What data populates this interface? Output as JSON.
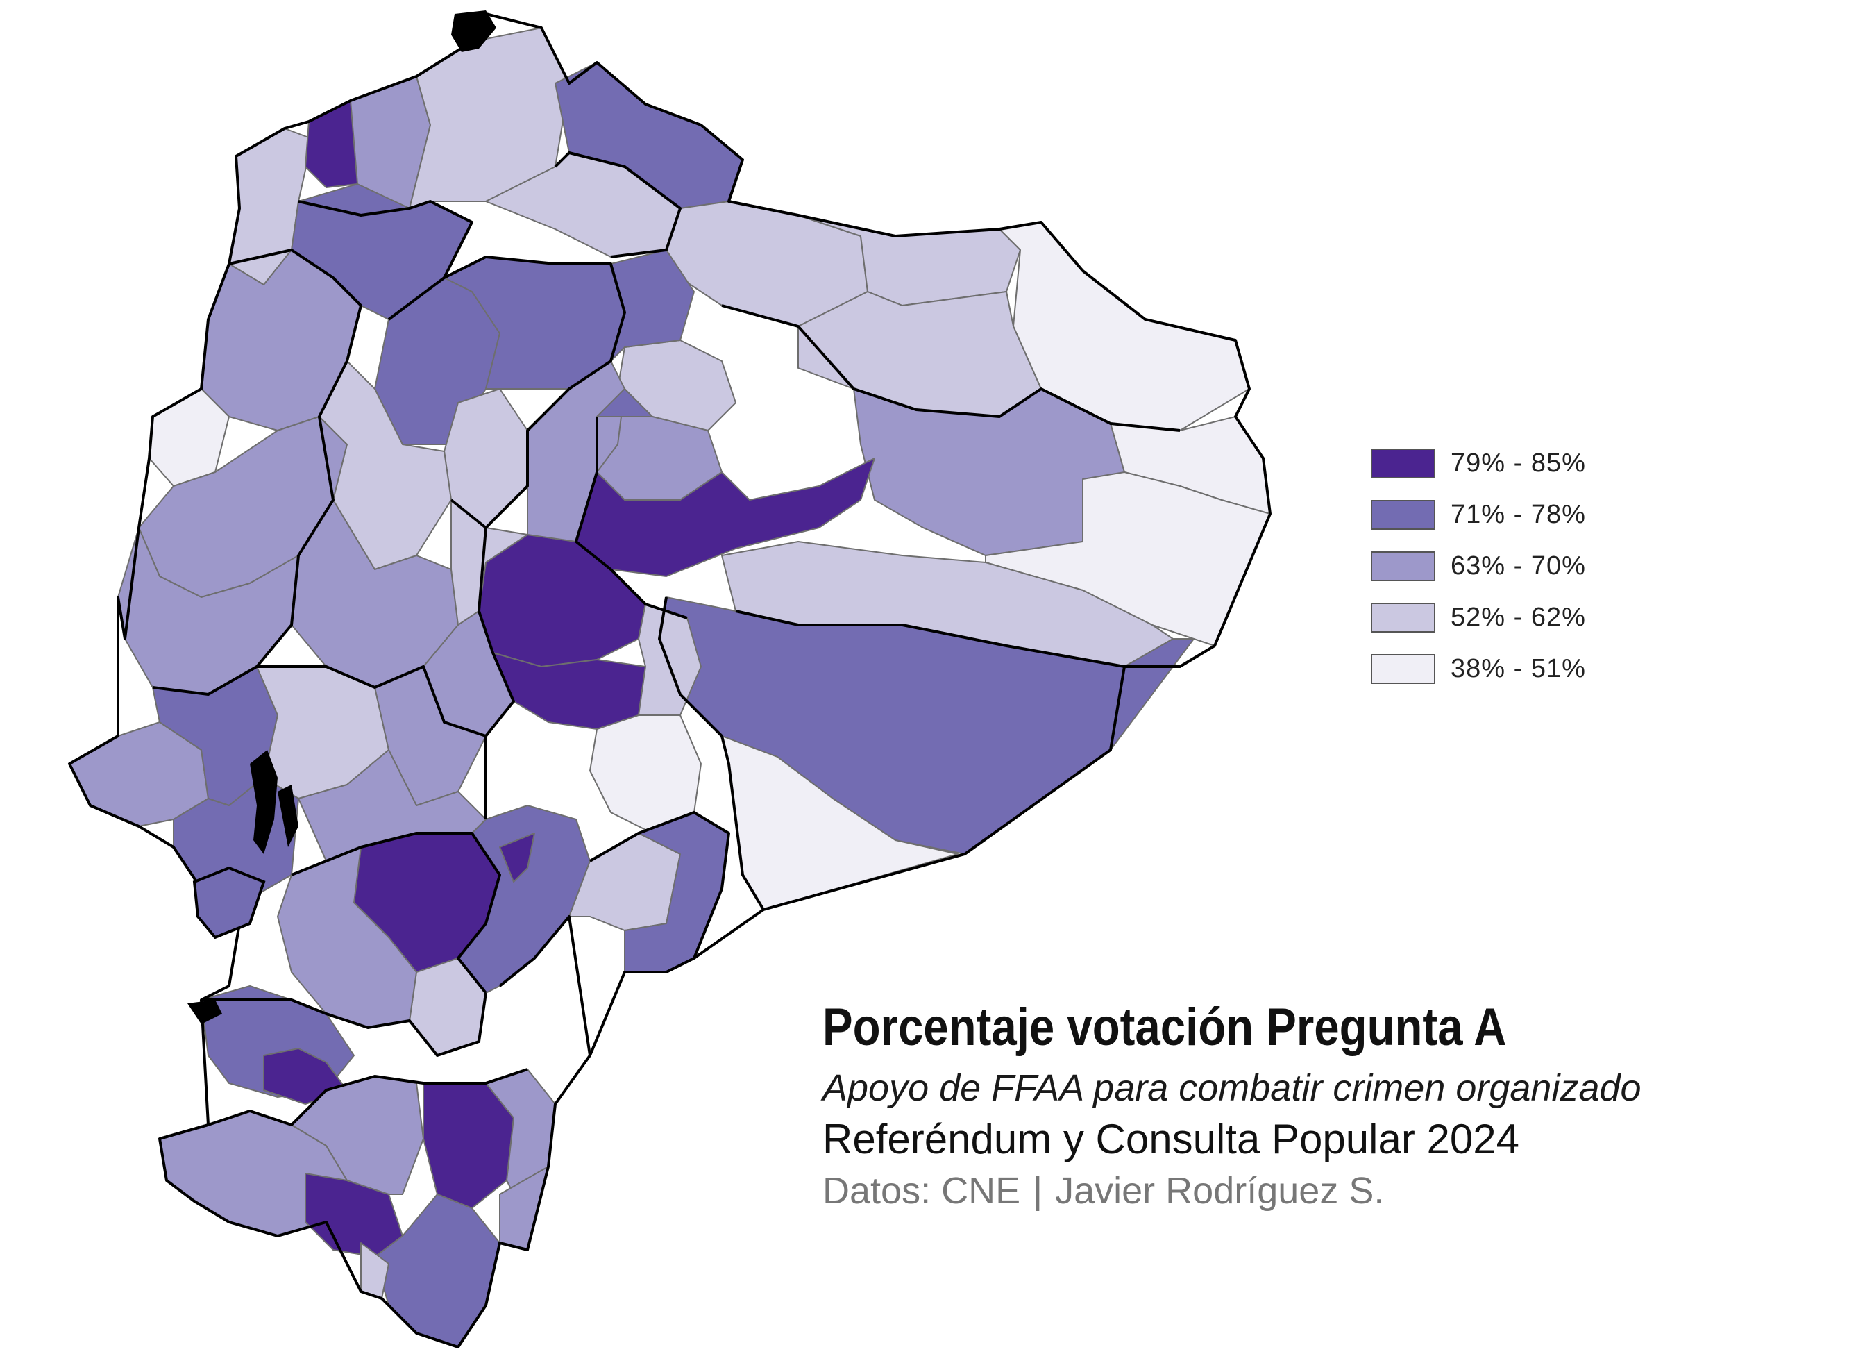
{
  "map": {
    "title": "Porcentaje votación Pregunta A",
    "subtitle": "Apoyo de FFAA para combatir crimen organizado",
    "event": "Referéndum y Consulta Popular 2024",
    "credits": {
      "source": "Datos: CNE",
      "separator": "|",
      "author": "Javier Rodríguez S."
    },
    "region": "Ecuador",
    "colors": {
      "class_79_85": "#4b2490",
      "class_71_78": "#736cb2",
      "class_63_70": "#9d98ca",
      "class_52_62": "#cbc8e1",
      "class_38_51": "#f0eff6",
      "province_border": "#000000",
      "canton_border": "#6e6e6e"
    }
  },
  "legend": {
    "items": [
      {
        "label": "79% - 85%",
        "color": "#4b2490"
      },
      {
        "label": "71% - 78%",
        "color": "#736cb2"
      },
      {
        "label": "63% - 70%",
        "color": "#9d98ca"
      },
      {
        "label": "52% - 62%",
        "color": "#cbc8e1"
      },
      {
        "label": "38% - 51%",
        "color": "#f0eff6"
      }
    ]
  }
}
